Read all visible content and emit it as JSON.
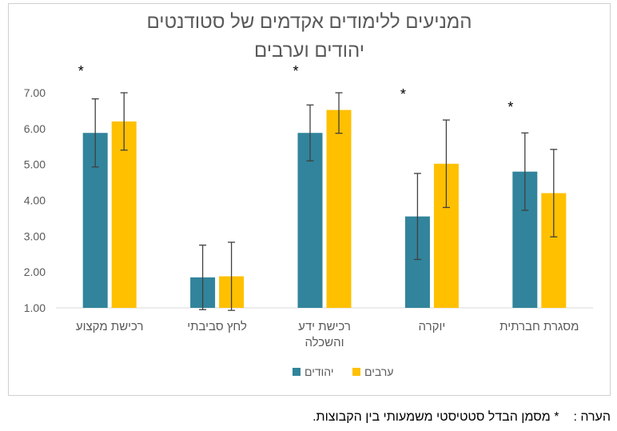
{
  "chart_data": {
    "type": "bar",
    "title_line1": "המניעים ללימודים אקדמים של סטודנטים",
    "title_line2": "יהודים וערבים",
    "categories": [
      "רכישת מקצוע",
      "לחץ סביבתי",
      "רכישת ידע והשכלה",
      "יוקרה",
      "מסגרת חברתית"
    ],
    "category_lines": [
      [
        "רכישת מקצוע"
      ],
      [
        "לחץ סביבתי"
      ],
      [
        "רכישת ידע",
        "והשכלה"
      ],
      [
        "יוקרה"
      ],
      [
        "מסגרת חברתית"
      ]
    ],
    "series": [
      {
        "name": "יהודים",
        "color": "#31849B",
        "values": [
          5.88,
          1.85,
          5.88,
          3.55,
          4.8
        ],
        "error": [
          0.95,
          0.9,
          0.78,
          1.2,
          1.08
        ]
      },
      {
        "name": "ערבים",
        "color": "#FFC000",
        "values": [
          6.2,
          1.88,
          6.52,
          5.02,
          4.2
        ],
        "error": [
          0.8,
          0.95,
          0.65,
          1.22,
          1.22
        ]
      }
    ],
    "significance_marker": "*",
    "significant": [
      true,
      false,
      true,
      true,
      true
    ],
    "ylim": [
      1.0,
      7.0
    ],
    "yticks": [
      "1.00",
      "2.00",
      "3.00",
      "4.00",
      "5.00",
      "6.00",
      "7.00"
    ],
    "xlabel": "",
    "ylabel": "",
    "legend_position": "bottom"
  },
  "note": {
    "label": "הערה :",
    "text": "* מסמן הבדל סטטיסטי משמעותי בין הקבוצות."
  }
}
